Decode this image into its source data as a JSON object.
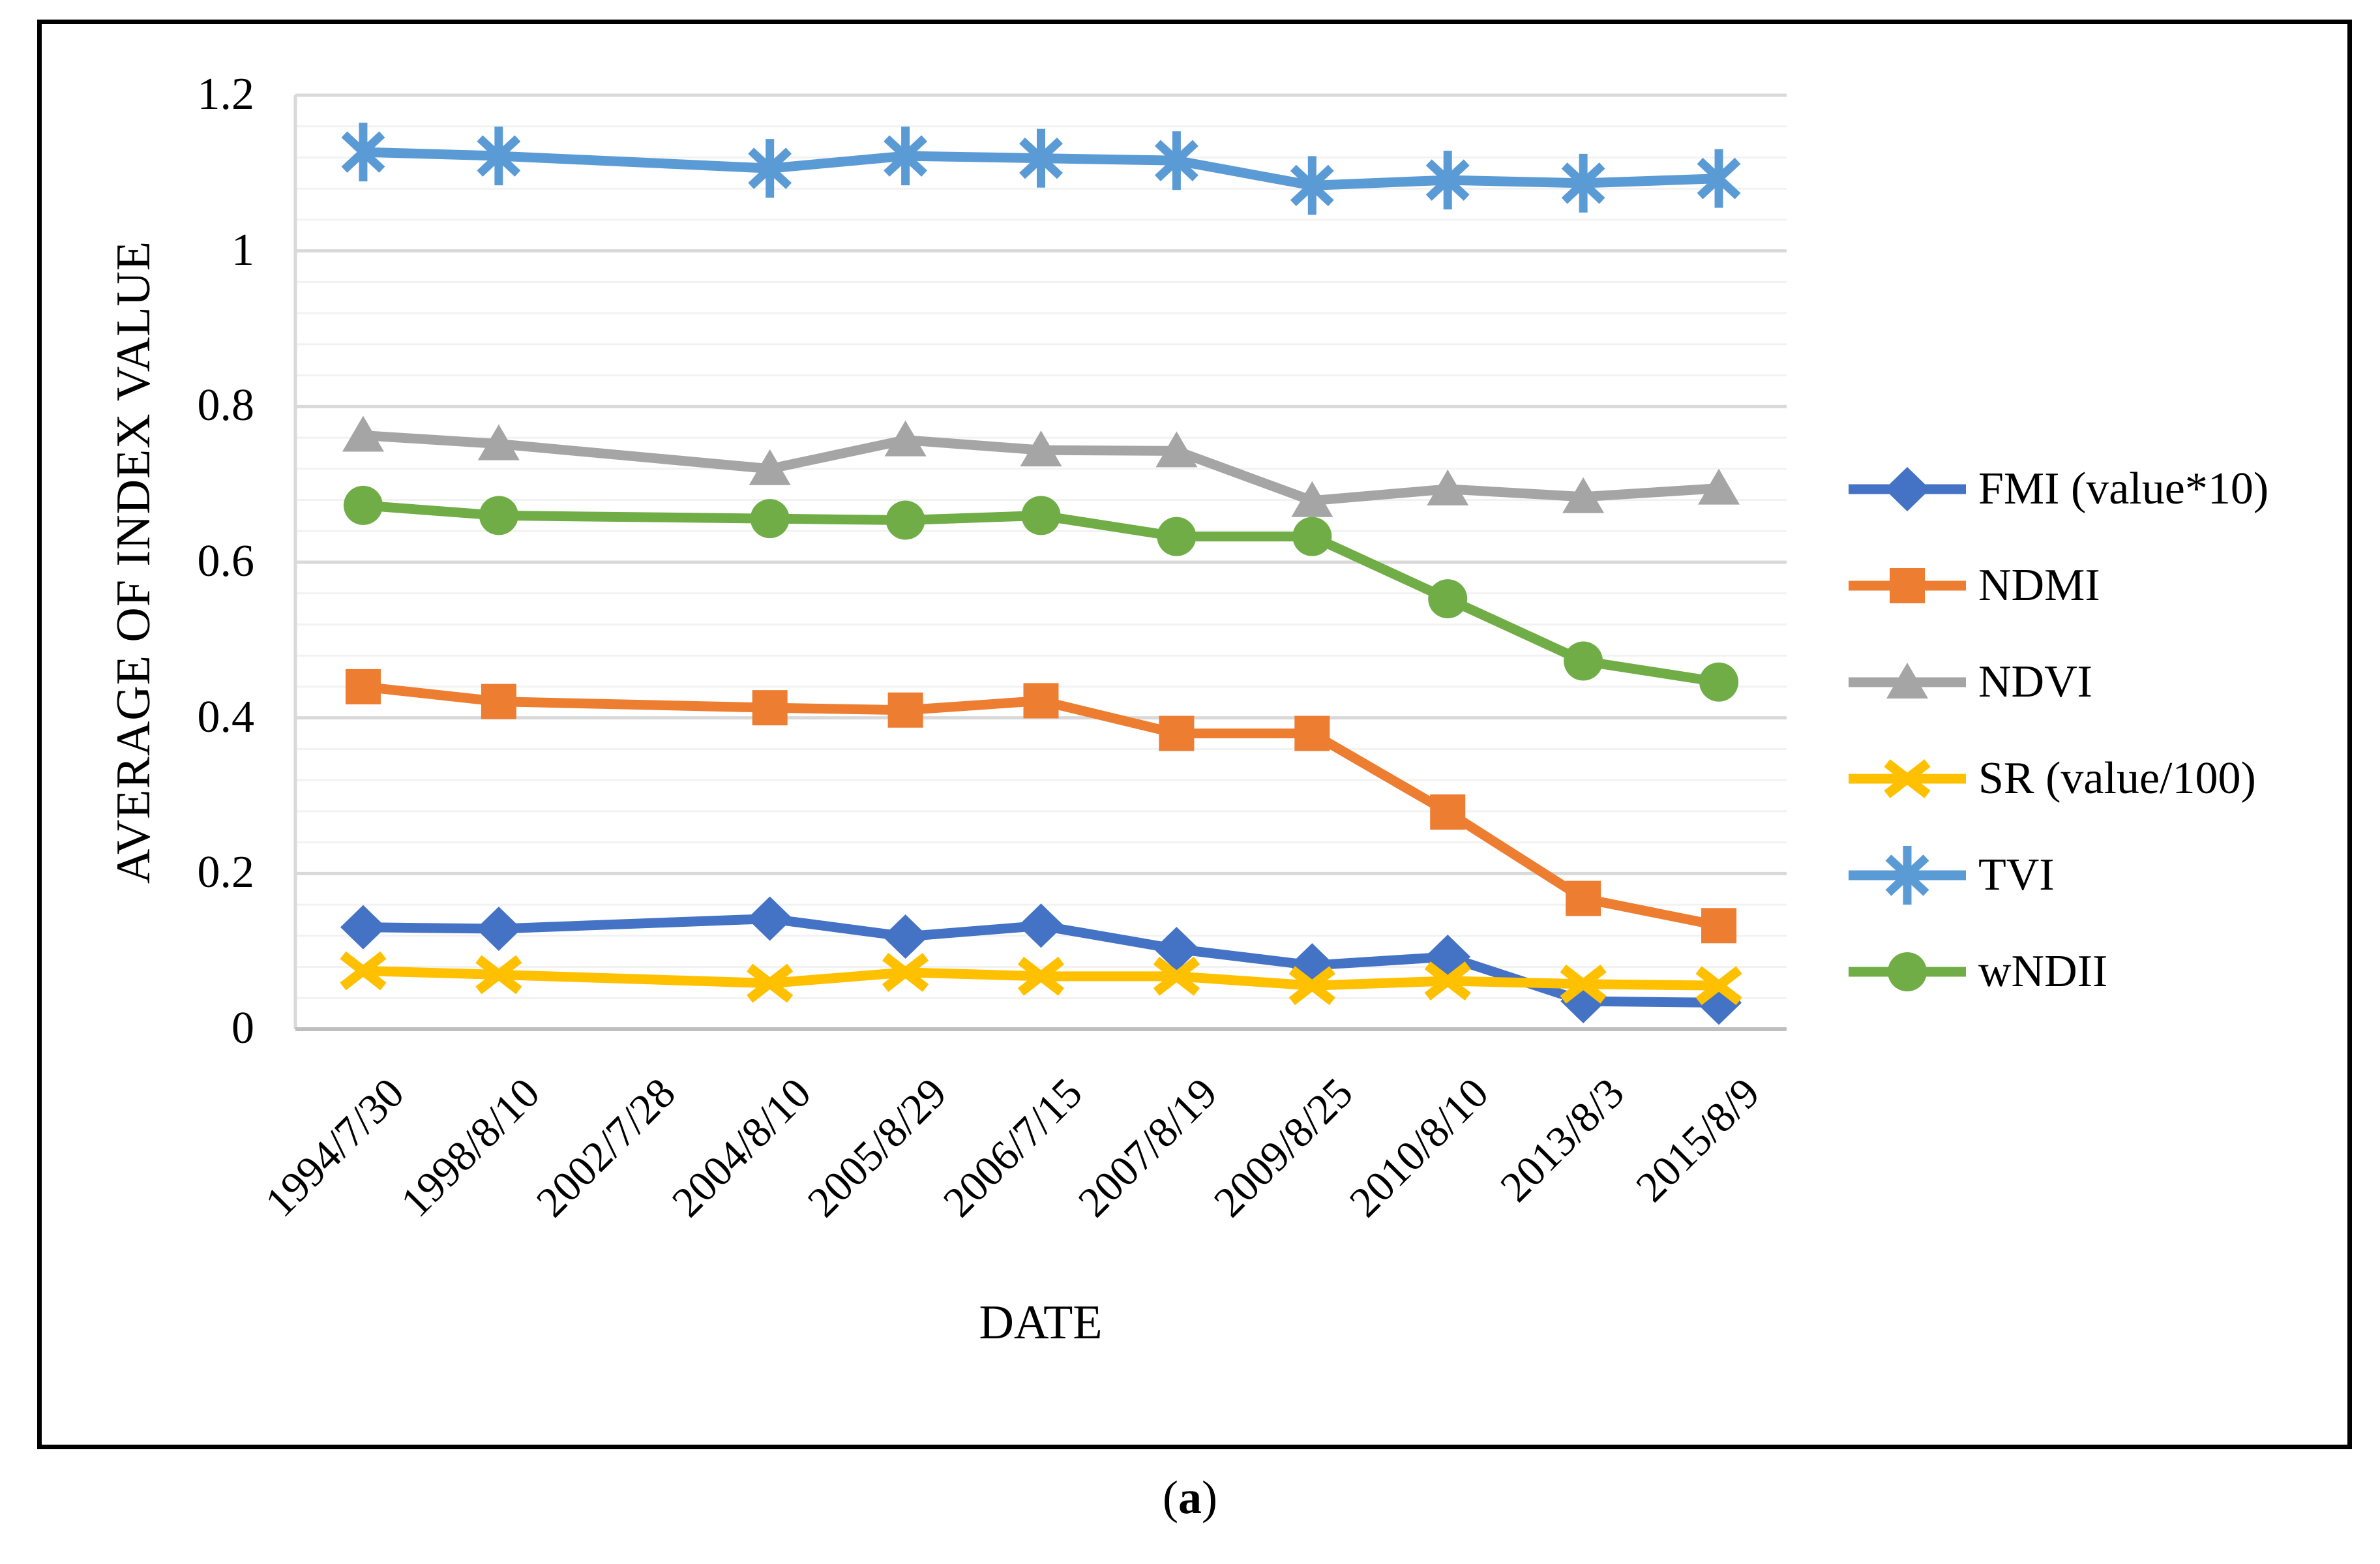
{
  "figure_caption": {
    "open": "(",
    "letter": "a",
    "close": ")"
  },
  "chart_data": {
    "type": "line",
    "title": "",
    "xlabel": "DATE",
    "ylabel": "AVERAGE OF INDEX VALUE",
    "ylim": [
      0,
      1.2
    ],
    "y_major_step": 0.2,
    "y_minor_step": 0.04,
    "y_tick_labels": [
      "0",
      "0.2",
      "0.4",
      "0.6",
      "0.8",
      "1",
      "1.2"
    ],
    "grid": true,
    "legend_position": "right",
    "categories": [
      "1994/7/30",
      "1998/8/10",
      "2002/7/28",
      "2004/8/10",
      "2005/8/29",
      "2006/7/15",
      "2007/8/19",
      "2009/8/25",
      "2010/8/10",
      "2013/8/3",
      "2015/8/9"
    ],
    "series": [
      {
        "name": "FMI (value*10)",
        "color": "#4472C4",
        "marker": "diamond",
        "values": [
          0.131,
          0.129,
          null,
          0.142,
          0.119,
          0.133,
          0.103,
          0.082,
          0.093,
          0.036,
          0.034
        ]
      },
      {
        "name": "NDMI",
        "color": "#ED7D31",
        "marker": "square",
        "values": [
          0.44,
          0.421,
          null,
          0.413,
          0.41,
          0.422,
          0.38,
          0.38,
          0.279,
          0.168,
          0.133
        ]
      },
      {
        "name": "NDVI",
        "color": "#A5A5A5",
        "marker": "triangle-up",
        "values": [
          0.763,
          0.752,
          null,
          0.72,
          0.757,
          0.744,
          0.743,
          0.679,
          0.694,
          0.684,
          0.695
        ]
      },
      {
        "name": "SR (value/100)",
        "color": "#FFC000",
        "marker": "x",
        "values": [
          0.075,
          0.07,
          null,
          0.059,
          0.073,
          0.068,
          0.068,
          0.056,
          0.062,
          0.058,
          0.056
        ]
      },
      {
        "name": "TVI",
        "color": "#5B9BD5",
        "marker": "asterisk",
        "values": [
          1.127,
          1.122,
          null,
          1.106,
          1.122,
          1.119,
          1.116,
          1.084,
          1.091,
          1.087,
          1.093
        ]
      },
      {
        "name": "wNDII",
        "color": "#70AD47",
        "marker": "circle",
        "values": [
          0.673,
          0.66,
          null,
          0.656,
          0.654,
          0.66,
          0.633,
          0.633,
          0.553,
          0.473,
          0.446
        ]
      }
    ]
  },
  "colors": {
    "major_grid": "#D9D9D9",
    "minor_grid": "#F2F2F2",
    "bottom_axis": "#BFBFBF",
    "left_axis": "#D9D9D9",
    "text": "#000000"
  }
}
